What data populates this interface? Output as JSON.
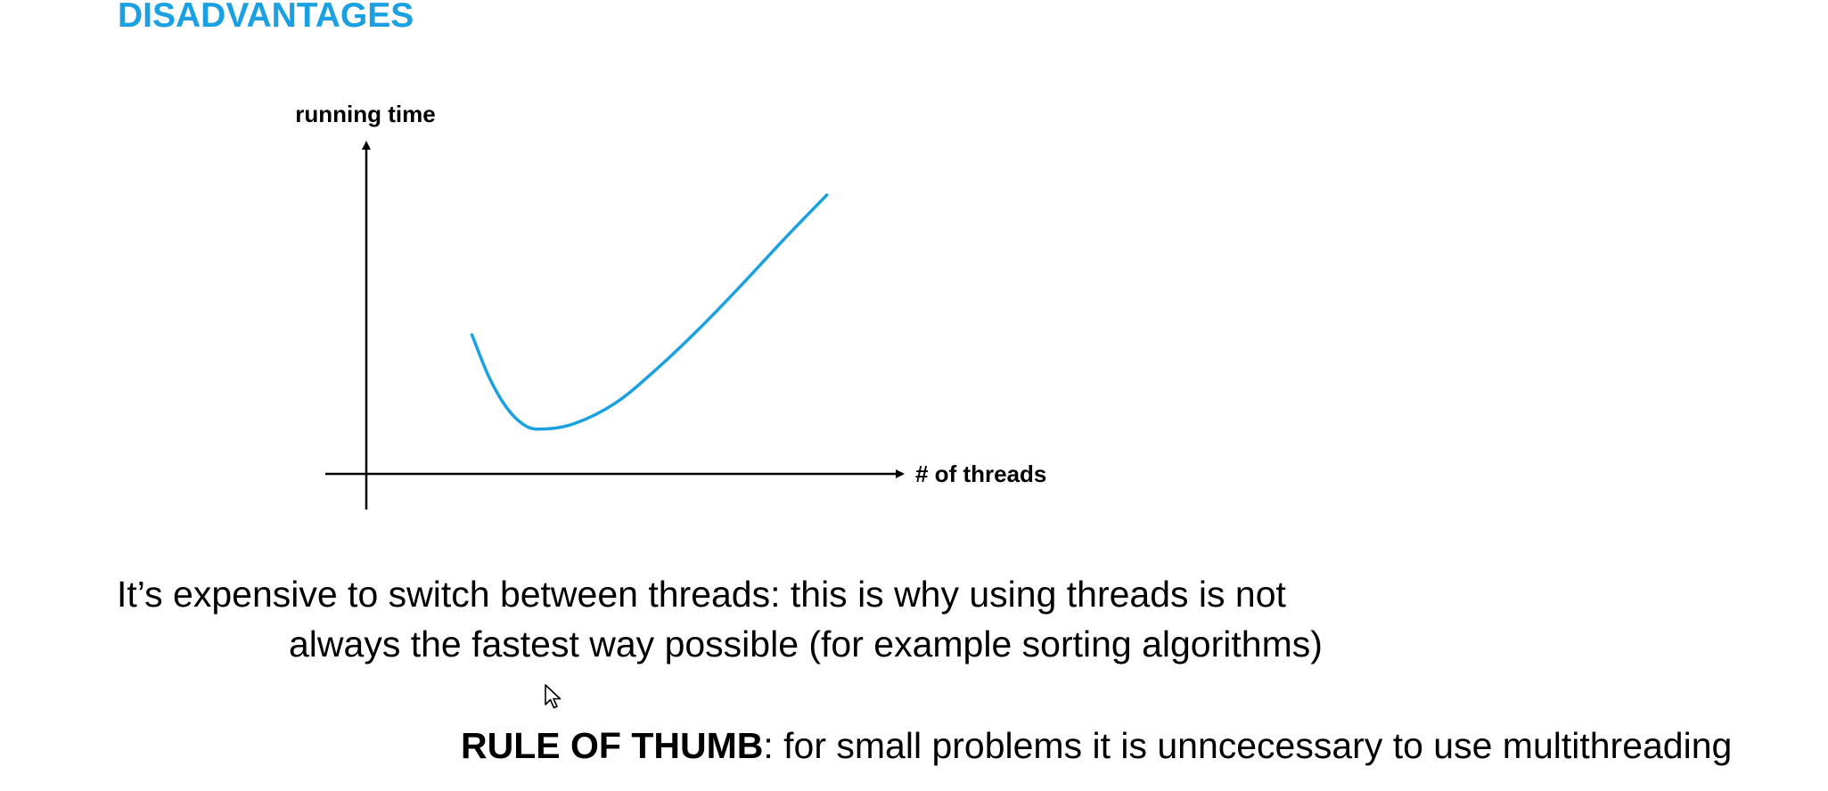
{
  "slide": {
    "title": "DISADVANTAGES"
  },
  "chart_data": {
    "type": "line",
    "title": "",
    "xlabel": "# of threads",
    "ylabel": "running time",
    "axis_ticks": false,
    "grid": false,
    "series": [
      {
        "color": "#1ba1e2",
        "points": [
          {
            "x": 0.8,
            "y": 4.0
          },
          {
            "x": 1.0,
            "y": 2.8
          },
          {
            "x": 1.2,
            "y": 1.95
          },
          {
            "x": 1.4,
            "y": 1.45
          },
          {
            "x": 1.6,
            "y": 1.3
          },
          {
            "x": 2.0,
            "y": 1.45
          },
          {
            "x": 2.5,
            "y": 2.05
          },
          {
            "x": 3.0,
            "y": 3.05
          },
          {
            "x": 3.5,
            "y": 4.2
          },
          {
            "x": 4.0,
            "y": 5.45
          },
          {
            "x": 4.5,
            "y": 6.75
          },
          {
            "x": 5.0,
            "y": 8.0
          }
        ]
      }
    ],
    "xlim": [
      -0.45,
      5.9
    ],
    "ylim": [
      -1.0,
      9.5
    ]
  },
  "text": {
    "line1": "It’s expensive to switch between threads: this is why using threads is not",
    "line2": "always the fastest way possible (for example sorting algorithms)",
    "rule_label": "RULE OF THUMB",
    "rule_text": ": for small problems it is unncecessary to use multithreading"
  },
  "icons": {
    "cursor": "mouse-pointer-icon"
  }
}
